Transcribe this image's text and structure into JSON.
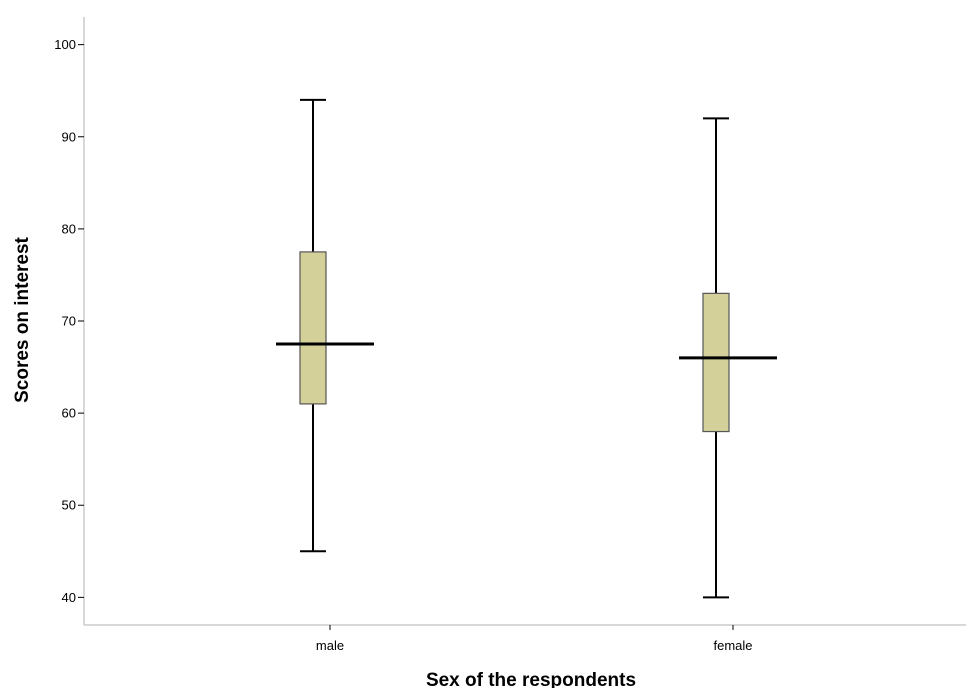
{
  "chart_data": {
    "type": "boxplot",
    "xlabel": "Sex of the respondents",
    "ylabel": "Scores on interest",
    "ylim": [
      37,
      103
    ],
    "yticks": [
      40,
      50,
      60,
      70,
      80,
      90,
      100
    ],
    "ytick_labels": [
      "40",
      "50",
      "60",
      "70",
      "80",
      "90",
      "100"
    ],
    "grid": false,
    "categories": [
      "male",
      "female"
    ],
    "series": [
      {
        "category": "male",
        "min": 45,
        "q1": 61,
        "median": 67.5,
        "q3": 77.5,
        "max": 94
      },
      {
        "category": "female",
        "min": 40,
        "q1": 58,
        "median": 66,
        "q3": 73,
        "max": 92
      }
    ],
    "box_color": "#d4d09a",
    "line_color": "#000000",
    "axis_color": "#cccccc"
  }
}
